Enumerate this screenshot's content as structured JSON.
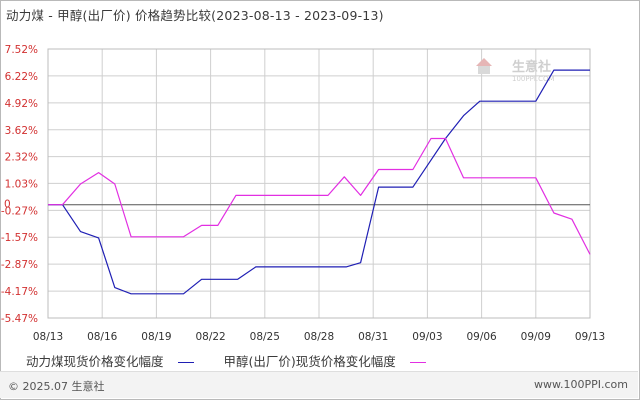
{
  "title": "动力煤 - 甲醇(出厂价) 价格趋势比较(2023-08-13 - 2023-09-13)",
  "watermark": {
    "name": "生意社",
    "site": "100PPI.COM"
  },
  "footer": {
    "copyright": "© 2025.07 生意社",
    "site": "www.100PPI.com"
  },
  "colors": {
    "series1": "#1f1fb4",
    "series2": "#e22fe2",
    "axis_red": "#d23030",
    "grid": "#cfcfcf"
  },
  "chart_data": {
    "type": "line",
    "ylabel": "",
    "xlabel": "",
    "ylim": [
      -5.47,
      7.52
    ],
    "y_ticks": [
      "7.52%",
      "6.22%",
      "4.92%",
      "3.62%",
      "2.32%",
      "1.03%",
      "-0.27%",
      "-1.57%",
      "-2.87%",
      "-4.17%",
      "-5.47%"
    ],
    "y_tick_values": [
      7.52,
      6.22,
      4.92,
      3.62,
      2.32,
      1.03,
      -0.27,
      -1.57,
      -2.87,
      -4.17,
      -5.47
    ],
    "zero_label": "0",
    "x_ticks": [
      "08/13",
      "08/16",
      "08/19",
      "08/22",
      "08/25",
      "08/28",
      "08/31",
      "09/03",
      "09/06",
      "09/09",
      "09/13"
    ],
    "x_tick_days": [
      0,
      3,
      6,
      9,
      12,
      15,
      18,
      21,
      24,
      27,
      30
    ],
    "grid": true,
    "legend_position": "bottom",
    "series": [
      {
        "name": "动力煤现货价格变化幅度",
        "points": [
          [
            0,
            0
          ],
          [
            0.8,
            0
          ],
          [
            1.8,
            -1.3
          ],
          [
            2.8,
            -1.6
          ],
          [
            3.7,
            -4.0
          ],
          [
            4.6,
            -4.3
          ],
          [
            5.5,
            -4.3
          ],
          [
            7.5,
            -4.3
          ],
          [
            8.5,
            -3.6
          ],
          [
            10.5,
            -3.6
          ],
          [
            11.5,
            -3.0
          ],
          [
            14.5,
            -3.0
          ],
          [
            16.5,
            -3.0
          ],
          [
            17.3,
            -2.8
          ],
          [
            18.3,
            0.85
          ],
          [
            20.2,
            0.85
          ],
          [
            21.0,
            1.9
          ],
          [
            22.0,
            3.2
          ],
          [
            23.0,
            4.3
          ],
          [
            23.9,
            5.0
          ],
          [
            27.0,
            5.0
          ],
          [
            28.0,
            6.5
          ],
          [
            30.0,
            6.5
          ]
        ]
      },
      {
        "name": "甲醇(出厂价)现货价格变化幅度",
        "points": [
          [
            0,
            0
          ],
          [
            0.8,
            0
          ],
          [
            1.8,
            1.0
          ],
          [
            2.8,
            1.55
          ],
          [
            3.7,
            1.0
          ],
          [
            4.6,
            -1.55
          ],
          [
            6.5,
            -1.55
          ],
          [
            7.5,
            -1.55
          ],
          [
            8.5,
            -1.0
          ],
          [
            9.4,
            -1.0
          ],
          [
            10.4,
            0.45
          ],
          [
            12.5,
            0.45
          ],
          [
            15.5,
            0.45
          ],
          [
            16.4,
            1.35
          ],
          [
            17.3,
            0.45
          ],
          [
            18.3,
            1.7
          ],
          [
            20.2,
            1.7
          ],
          [
            21.2,
            3.2
          ],
          [
            22.0,
            3.2
          ],
          [
            23.0,
            1.3
          ],
          [
            26.0,
            1.3
          ],
          [
            27.0,
            1.3
          ],
          [
            28.0,
            -0.4
          ],
          [
            29.0,
            -0.7
          ],
          [
            30.0,
            -2.4
          ]
        ]
      }
    ]
  }
}
